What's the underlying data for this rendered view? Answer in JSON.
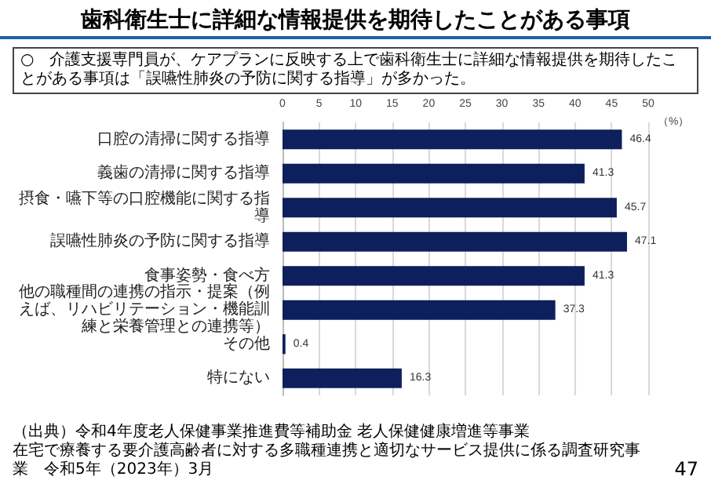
{
  "chart_data": {
    "type": "bar",
    "title": "歯科衛生士に詳細な情報提供を期待したことがある事項",
    "annotations": [
      "○　介護支援専門員が、ケアプランに反映する上で歯科衛生士に詳細な情報提供を期待したことがある事項は「誤嚥性肺炎の予防に関する指導」が多かった。",
      "（出典）令和4年度老人保健事業推進費等補助金 老人保健健康増進等事業",
      "在宅で療養する要介護高齢者に対する多職種連携と適切なサービス提供に係る調査研究事業　令和5年（2023年）3月",
      "47"
    ],
    "orientation": "horizontal",
    "categories": [
      "口腔の清掃に関する指導",
      "義歯の清掃に関する指導",
      "摂食・嚥下等の口腔機能に関する指導",
      "誤嚥性肺炎の予防に関する指導",
      "食事姿勢・食べ方",
      "他の職種間の連携の指示・提案（例えば、リハビリテーション・機能訓練と栄養管理との連携等）",
      "その他",
      "特にない"
    ],
    "values": [
      46.4,
      41.3,
      45.7,
      47.1,
      41.3,
      37.3,
      0.4,
      16.3
    ],
    "color": "#0d1f5c",
    "xlabel": "（%）",
    "xlim": [
      0,
      50
    ],
    "xticks": [
      0,
      5,
      10,
      15,
      20,
      25,
      30,
      35,
      40,
      45,
      50
    ],
    "grid": "x",
    "data_labels": true
  }
}
